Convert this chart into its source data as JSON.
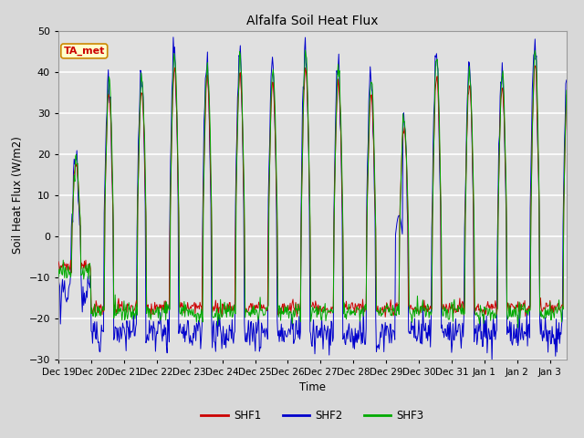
{
  "title": "Alfalfa Soil Heat Flux",
  "ylabel": "Soil Heat Flux (W/m2)",
  "xlabel": "Time",
  "ylim": [
    -30,
    50
  ],
  "background_color": "#d8d8d8",
  "plot_bg_color": "#e0e0e0",
  "grid_color": "#ffffff",
  "shf1_color": "#cc0000",
  "shf2_color": "#0000cc",
  "shf3_color": "#00aa00",
  "annotation_text": "TA_met",
  "annotation_bg": "#ffffcc",
  "annotation_border": "#cc8800",
  "annotation_text_color": "#cc0000",
  "tick_labels": [
    "Dec 19",
    "Dec 20",
    "Dec 21",
    "Dec 22",
    "Dec 23",
    "Dec 24",
    "Dec 25",
    "Dec 26",
    "Dec 27",
    "Dec 28",
    "Dec 29",
    "Dec 30",
    "Dec 31",
    "Jan 1",
    "Jan 2",
    "Jan 3"
  ],
  "yticks": [
    -30,
    -20,
    -10,
    0,
    10,
    20,
    30,
    40,
    50
  ],
  "n_days": 15.5,
  "pts_per_day": 48,
  "daily_amps": [
    19,
    39,
    40,
    46,
    43,
    45,
    42,
    46,
    42,
    39,
    30,
    44,
    42,
    41,
    47,
    41
  ],
  "night_base": -20
}
